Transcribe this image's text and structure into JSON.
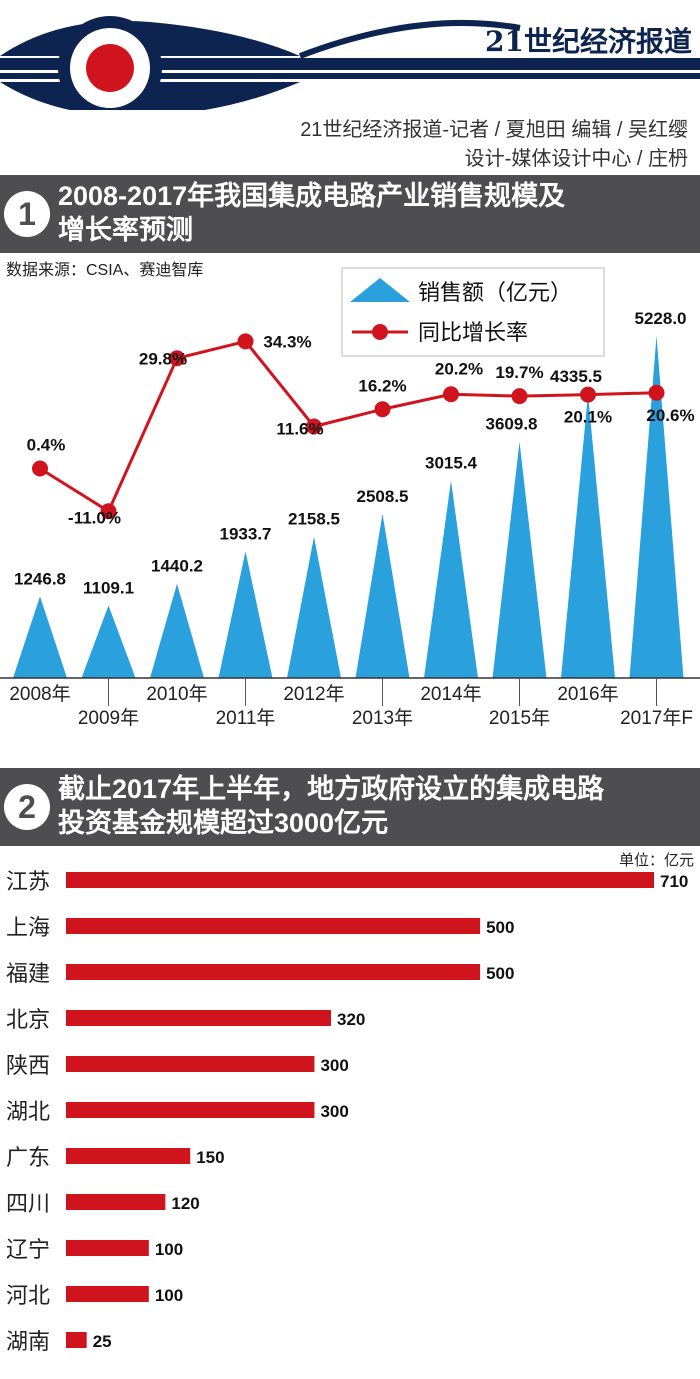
{
  "header": {
    "brand": "21世纪经济报道",
    "credit_line1": "21世纪经济报道-记者 / 夏旭田   编辑 / 吴红缨",
    "credit_line2": "设计-媒体设计中心 / 庄枬"
  },
  "section1": {
    "number": "1",
    "title_line1": "2008-2017年我国集成电路产业销售规模及",
    "title_line2": "增长率预测",
    "source": "数据来源：CSIA、赛迪智库"
  },
  "section2": {
    "number": "2",
    "title_line1": "截止2017年上半年，地方政府设立的集成电路",
    "title_line2": "投资基金规模超过3000亿元",
    "unit": "单位：亿元"
  },
  "colors": {
    "banner": "#4e4e50",
    "bar_blue": "#2aa0dc",
    "line_red": "#d0141e",
    "navy": "#0d2350"
  },
  "chart_data": [
    {
      "type": "bar+line",
      "title": "2008-2017年我国集成电路产业销售规模及增长率预测",
      "categories": [
        "2008年",
        "2009年",
        "2010年",
        "2011年",
        "2012年",
        "2013年",
        "2014年",
        "2015年",
        "2016年",
        "2017年F"
      ],
      "series": [
        {
          "name": "销售额（亿元）",
          "kind": "bar",
          "values": [
            1246.8,
            1109.1,
            1440.2,
            1933.7,
            2158.5,
            2508.5,
            3015.4,
            3609.8,
            4335.5,
            5228.0
          ],
          "labels": [
            "1246.8",
            "1109.1",
            "1440.2",
            "1933.7",
            "2158.5",
            "2508.5",
            "3015.4",
            "3609.8",
            "4335.5",
            "5228.0"
          ]
        },
        {
          "name": "同比增长率",
          "kind": "line",
          "values": [
            0.4,
            -11.0,
            29.8,
            34.3,
            11.6,
            16.2,
            20.2,
            19.7,
            20.1,
            20.6
          ],
          "labels": [
            "0.4%",
            "-11.0%",
            "29.8%",
            "34.3%",
            "11.6%",
            "16.2%",
            "20.2%",
            "19.7%",
            "20.1%",
            "20.6%"
          ]
        }
      ],
      "legend": [
        "销售额（亿元）",
        "同比增长率"
      ],
      "legend_position": "top-right",
      "ylim_bar": [
        0,
        5500
      ],
      "ylim_line": [
        -40,
        40
      ]
    },
    {
      "type": "bar",
      "orientation": "horizontal",
      "title": "截止2017年上半年，地方政府设立的集成电路投资基金规模超过3000亿元",
      "unit": "单位：亿元",
      "categories": [
        "江苏",
        "上海",
        "福建",
        "北京",
        "陕西",
        "湖北",
        "广东",
        "四川",
        "辽宁",
        "河北",
        "湖南"
      ],
      "values": [
        710,
        500,
        500,
        320,
        300,
        300,
        150,
        120,
        100,
        100,
        25
      ],
      "labels": [
        "710",
        "500",
        "500",
        "320",
        "300",
        "300",
        "150",
        "120",
        "100",
        "100",
        "25"
      ],
      "xlim": [
        0,
        710
      ]
    }
  ]
}
